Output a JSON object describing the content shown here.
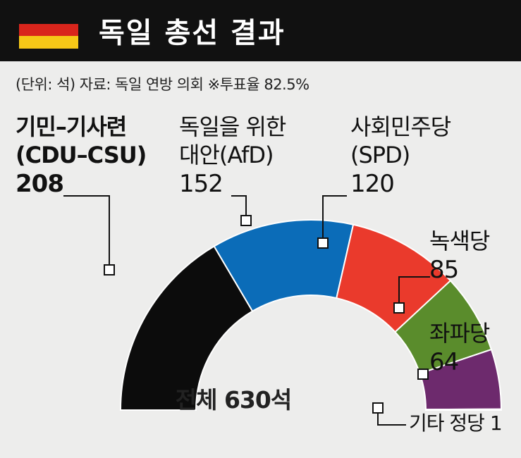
{
  "header": {
    "title": "독일 총선 결과",
    "flag_colors": [
      "#111111",
      "#d9251c",
      "#f6c817"
    ]
  },
  "subtitle": "(단위: 석)  자료: 독일 연방 의회   ※투표율 82.5%",
  "chart_data": {
    "type": "pie",
    "variant": "semicircle-parliament",
    "total_label": "전체 630석",
    "total": 630,
    "series": [
      {
        "name": "기민–기사련",
        "code": "(CDU–CSU)",
        "value": 208,
        "color": "#0c0c0c"
      },
      {
        "name": "독일을 위한",
        "code": "대안(AfD)",
        "value": 152,
        "color": "#0b6cb8"
      },
      {
        "name": "사회민주당",
        "code": "(SPD)",
        "value": 120,
        "color": "#ea3a2c"
      },
      {
        "name": "녹색당",
        "code": "",
        "value": 85,
        "color": "#5a8c2c"
      },
      {
        "name": "좌파당",
        "code": "",
        "value": 64,
        "color": "#6d2a6d"
      },
      {
        "name": "기타 정당 1",
        "code": "",
        "value": 1,
        "color": "#cfcfcf"
      }
    ]
  }
}
